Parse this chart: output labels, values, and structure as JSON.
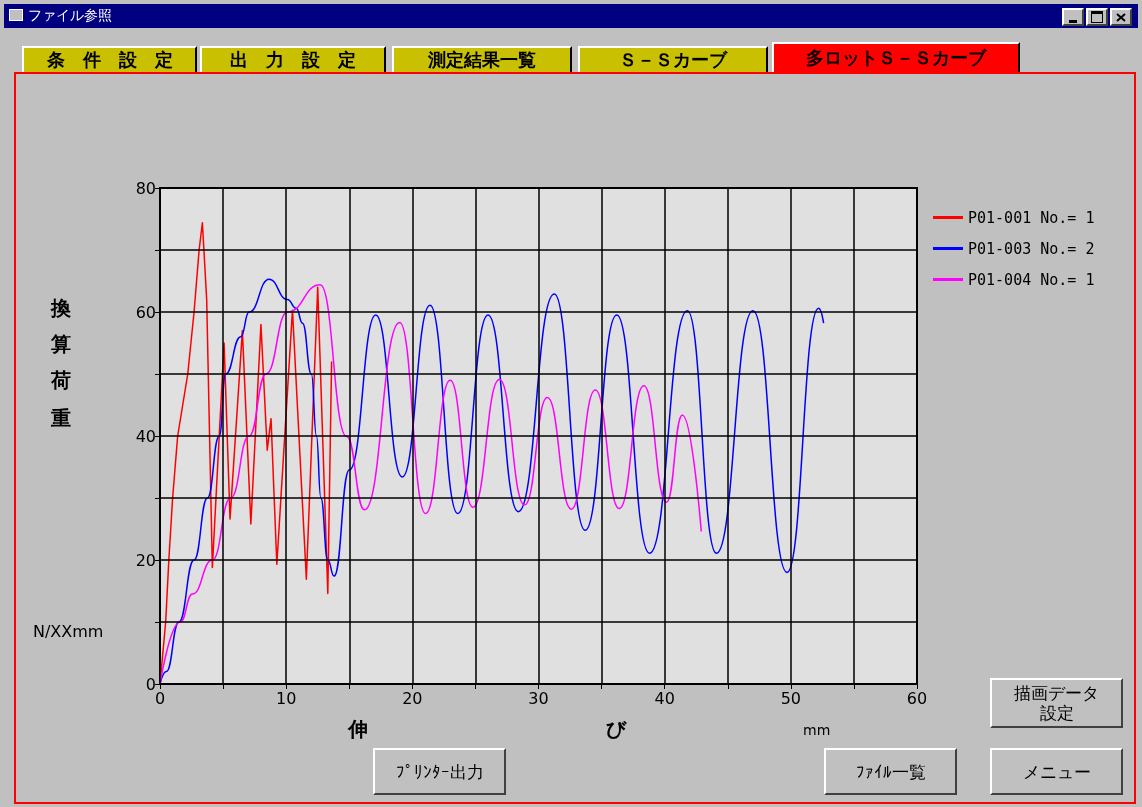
{
  "chart_data": {
    "type": "line",
    "title": "ファイル参照",
    "xlabel": "伸び",
    "ylabel": "換算荷重",
    "annotations": [
      "条　件　設　定",
      "出　力　設　定",
      "測定結果一覧",
      "Ｓ－Ｓカーブ",
      "多ロットＳ－Ｓカーブ",
      "N/XXmm",
      "mm",
      "描画データ設定",
      "ﾌﾟﾘﾝﾀｰ出力",
      "ﾌｧｲﾙ一覧",
      "メニュー"
    ],
    "xlim": [
      0,
      60
    ],
    "xticks": [
      0,
      {
        "value": 5,
        "label": null
      },
      10,
      {
        "value": 15,
        "label": null
      },
      20,
      {
        "value": 25,
        "label": null
      },
      30,
      {
        "value": 35,
        "label": null
      },
      40,
      {
        "value": 45,
        "label": null
      },
      50,
      {
        "value": 55,
        "label": null
      },
      60
    ],
    "ylim": [
      0,
      80
    ],
    "yticks": [
      0,
      {
        "value": 10,
        "label": null
      },
      20,
      {
        "value": 30,
        "label": null
      },
      40,
      {
        "value": 50,
        "label": null
      },
      60,
      {
        "value": 70,
        "label": null
      },
      80
    ],
    "grid": true,
    "legend": "right",
    "series": [
      {
        "name": "P01-001 No.= 1",
        "color": "#ff0000",
        "x": [
          0,
          0.45,
          0.7,
          1.0,
          1.4,
          2.2,
          2.7,
          3.1,
          3.36,
          3.7,
          4.15,
          5.08,
          5.55,
          6.53,
          7.2,
          8.0,
          8.5,
          8.8,
          9.26,
          10.5,
          11.6,
          12.5,
          13.3,
          13.6
        ],
        "values": [
          0,
          10,
          20,
          30,
          40,
          50,
          60,
          70,
          74.4,
          62,
          18.8,
          55,
          26.6,
          57,
          25.8,
          58,
          37.7,
          42.8,
          19.3,
          60.3,
          16.9,
          64,
          14.6,
          52
        ]
      },
      {
        "name": "P01-003 No.= 2",
        "color": "#0000ff",
        "x": [
          0,
          0.5,
          1.5,
          2.7,
          3.76,
          4.7,
          5.2,
          6.4,
          7.06,
          8.65,
          10.1,
          10.8,
          11.3,
          12.0,
          12.4,
          12.75,
          13.3,
          13.8,
          15.0,
          17.1,
          19.2,
          21.4,
          23.6,
          26.0,
          28.4,
          31.25,
          33.7,
          36.2,
          38.8,
          41.8,
          44.1,
          47.0,
          49.7,
          52.2,
          52.6
        ],
        "values": [
          0,
          2,
          10,
          20,
          30,
          40,
          50,
          56,
          60,
          65.3,
          62,
          60.6,
          58.2,
          50,
          40,
          30,
          20,
          17.4,
          34.5,
          59.5,
          33.4,
          61.1,
          27.5,
          59.5,
          27.8,
          62.9,
          24.8,
          59.5,
          21.1,
          60.2,
          21.1,
          60.2,
          18,
          60.6,
          58.2
        ]
      },
      {
        "name": "P01-004 No.= 1",
        "color": "#ff00ff",
        "x": [
          0,
          1.6,
          2.57,
          4.15,
          5.6,
          7.06,
          8.4,
          10.1,
          12.7,
          14.8,
          16.2,
          19.0,
          21.05,
          23.0,
          24.8,
          26.9,
          28.9,
          30.7,
          32.6,
          34.5,
          36.4,
          38.35,
          40.15,
          41.4,
          42.9
        ],
        "values": [
          0,
          10,
          14.5,
          20,
          30,
          40,
          50,
          60,
          64.4,
          39.9,
          28.1,
          58.3,
          27.5,
          49,
          28.5,
          49.1,
          28.9,
          46.2,
          28.2,
          47.4,
          28.3,
          48.1,
          29.3,
          43.4,
          24.6
        ]
      }
    ]
  }
}
